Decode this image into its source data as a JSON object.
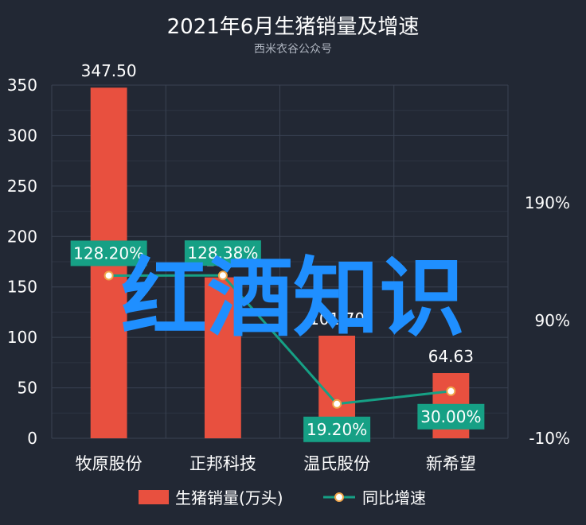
{
  "chart_data": {
    "type": "bar",
    "title": "2021年6月生猪销量及增速",
    "subtitle": "西米衣谷公众号",
    "categories": [
      "牧原股份",
      "正邦科技",
      "温氏股份",
      "新希望"
    ],
    "series": [
      {
        "name": "生猪销量(万头)",
        "type": "bar",
        "axis": "left",
        "values": [
          347.5,
          159.5,
          101.7,
          64.63
        ],
        "labels": [
          "347.50",
          "15...",
          "101.70",
          "64.63"
        ],
        "color": "#e8503f"
      },
      {
        "name": "同比增速",
        "type": "line",
        "axis": "right",
        "values": [
          128.2,
          128.38,
          19.2,
          30.0
        ],
        "labels": [
          "128.20%",
          "128.38%",
          "19.20%",
          "30.00%"
        ],
        "color": "#16a085"
      }
    ],
    "y_left": {
      "ylim": [
        0,
        350
      ],
      "ticks": [
        "0",
        "50",
        "100",
        "150",
        "200",
        "250",
        "300",
        "350"
      ]
    },
    "y_right": {
      "ylim": [
        -10,
        290
      ],
      "ticks": [
        "-10%",
        "90%",
        "190%"
      ]
    },
    "grid": true,
    "legend": "bottom"
  },
  "watermark": "红酒知识"
}
